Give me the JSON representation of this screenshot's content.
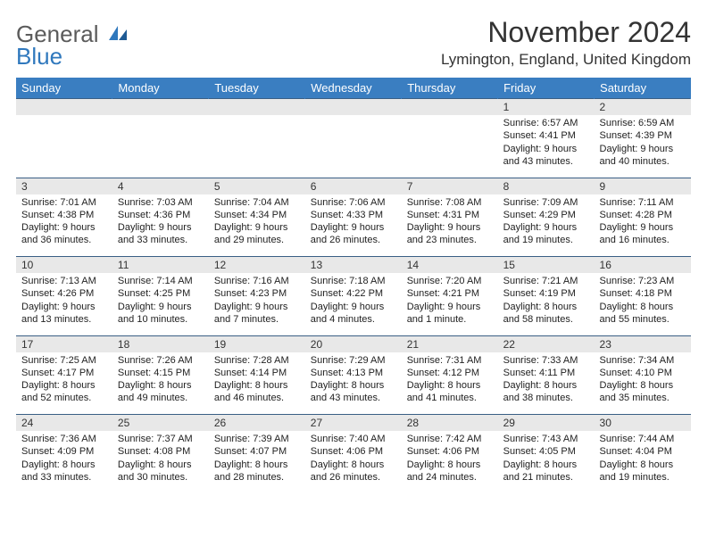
{
  "logo": {
    "text1": "General",
    "text2": "Blue"
  },
  "title": "November 2024",
  "location": "Lymington, England, United Kingdom",
  "colors": {
    "header_bg": "#3a7ec1",
    "header_text": "#ffffff",
    "daynum_bg": "#e8e8e8",
    "border": "#3a5f85",
    "logo_gray": "#5b5b5b",
    "logo_blue": "#2f78bd"
  },
  "weekday_headers": [
    "Sunday",
    "Monday",
    "Tuesday",
    "Wednesday",
    "Thursday",
    "Friday",
    "Saturday"
  ],
  "weeks": [
    {
      "nums": [
        "",
        "",
        "",
        "",
        "",
        "1",
        "2"
      ],
      "details": [
        null,
        null,
        null,
        null,
        null,
        {
          "sunrise": "Sunrise: 6:57 AM",
          "sunset": "Sunset: 4:41 PM",
          "day1": "Daylight: 9 hours",
          "day2": "and 43 minutes."
        },
        {
          "sunrise": "Sunrise: 6:59 AM",
          "sunset": "Sunset: 4:39 PM",
          "day1": "Daylight: 9 hours",
          "day2": "and 40 minutes."
        }
      ]
    },
    {
      "nums": [
        "3",
        "4",
        "5",
        "6",
        "7",
        "8",
        "9"
      ],
      "details": [
        {
          "sunrise": "Sunrise: 7:01 AM",
          "sunset": "Sunset: 4:38 PM",
          "day1": "Daylight: 9 hours",
          "day2": "and 36 minutes."
        },
        {
          "sunrise": "Sunrise: 7:03 AM",
          "sunset": "Sunset: 4:36 PM",
          "day1": "Daylight: 9 hours",
          "day2": "and 33 minutes."
        },
        {
          "sunrise": "Sunrise: 7:04 AM",
          "sunset": "Sunset: 4:34 PM",
          "day1": "Daylight: 9 hours",
          "day2": "and 29 minutes."
        },
        {
          "sunrise": "Sunrise: 7:06 AM",
          "sunset": "Sunset: 4:33 PM",
          "day1": "Daylight: 9 hours",
          "day2": "and 26 minutes."
        },
        {
          "sunrise": "Sunrise: 7:08 AM",
          "sunset": "Sunset: 4:31 PM",
          "day1": "Daylight: 9 hours",
          "day2": "and 23 minutes."
        },
        {
          "sunrise": "Sunrise: 7:09 AM",
          "sunset": "Sunset: 4:29 PM",
          "day1": "Daylight: 9 hours",
          "day2": "and 19 minutes."
        },
        {
          "sunrise": "Sunrise: 7:11 AM",
          "sunset": "Sunset: 4:28 PM",
          "day1": "Daylight: 9 hours",
          "day2": "and 16 minutes."
        }
      ]
    },
    {
      "nums": [
        "10",
        "11",
        "12",
        "13",
        "14",
        "15",
        "16"
      ],
      "details": [
        {
          "sunrise": "Sunrise: 7:13 AM",
          "sunset": "Sunset: 4:26 PM",
          "day1": "Daylight: 9 hours",
          "day2": "and 13 minutes."
        },
        {
          "sunrise": "Sunrise: 7:14 AM",
          "sunset": "Sunset: 4:25 PM",
          "day1": "Daylight: 9 hours",
          "day2": "and 10 minutes."
        },
        {
          "sunrise": "Sunrise: 7:16 AM",
          "sunset": "Sunset: 4:23 PM",
          "day1": "Daylight: 9 hours",
          "day2": "and 7 minutes."
        },
        {
          "sunrise": "Sunrise: 7:18 AM",
          "sunset": "Sunset: 4:22 PM",
          "day1": "Daylight: 9 hours",
          "day2": "and 4 minutes."
        },
        {
          "sunrise": "Sunrise: 7:20 AM",
          "sunset": "Sunset: 4:21 PM",
          "day1": "Daylight: 9 hours",
          "day2": "and 1 minute."
        },
        {
          "sunrise": "Sunrise: 7:21 AM",
          "sunset": "Sunset: 4:19 PM",
          "day1": "Daylight: 8 hours",
          "day2": "and 58 minutes."
        },
        {
          "sunrise": "Sunrise: 7:23 AM",
          "sunset": "Sunset: 4:18 PM",
          "day1": "Daylight: 8 hours",
          "day2": "and 55 minutes."
        }
      ]
    },
    {
      "nums": [
        "17",
        "18",
        "19",
        "20",
        "21",
        "22",
        "23"
      ],
      "details": [
        {
          "sunrise": "Sunrise: 7:25 AM",
          "sunset": "Sunset: 4:17 PM",
          "day1": "Daylight: 8 hours",
          "day2": "and 52 minutes."
        },
        {
          "sunrise": "Sunrise: 7:26 AM",
          "sunset": "Sunset: 4:15 PM",
          "day1": "Daylight: 8 hours",
          "day2": "and 49 minutes."
        },
        {
          "sunrise": "Sunrise: 7:28 AM",
          "sunset": "Sunset: 4:14 PM",
          "day1": "Daylight: 8 hours",
          "day2": "and 46 minutes."
        },
        {
          "sunrise": "Sunrise: 7:29 AM",
          "sunset": "Sunset: 4:13 PM",
          "day1": "Daylight: 8 hours",
          "day2": "and 43 minutes."
        },
        {
          "sunrise": "Sunrise: 7:31 AM",
          "sunset": "Sunset: 4:12 PM",
          "day1": "Daylight: 8 hours",
          "day2": "and 41 minutes."
        },
        {
          "sunrise": "Sunrise: 7:33 AM",
          "sunset": "Sunset: 4:11 PM",
          "day1": "Daylight: 8 hours",
          "day2": "and 38 minutes."
        },
        {
          "sunrise": "Sunrise: 7:34 AM",
          "sunset": "Sunset: 4:10 PM",
          "day1": "Daylight: 8 hours",
          "day2": "and 35 minutes."
        }
      ]
    },
    {
      "nums": [
        "24",
        "25",
        "26",
        "27",
        "28",
        "29",
        "30"
      ],
      "details": [
        {
          "sunrise": "Sunrise: 7:36 AM",
          "sunset": "Sunset: 4:09 PM",
          "day1": "Daylight: 8 hours",
          "day2": "and 33 minutes."
        },
        {
          "sunrise": "Sunrise: 7:37 AM",
          "sunset": "Sunset: 4:08 PM",
          "day1": "Daylight: 8 hours",
          "day2": "and 30 minutes."
        },
        {
          "sunrise": "Sunrise: 7:39 AM",
          "sunset": "Sunset: 4:07 PM",
          "day1": "Daylight: 8 hours",
          "day2": "and 28 minutes."
        },
        {
          "sunrise": "Sunrise: 7:40 AM",
          "sunset": "Sunset: 4:06 PM",
          "day1": "Daylight: 8 hours",
          "day2": "and 26 minutes."
        },
        {
          "sunrise": "Sunrise: 7:42 AM",
          "sunset": "Sunset: 4:06 PM",
          "day1": "Daylight: 8 hours",
          "day2": "and 24 minutes."
        },
        {
          "sunrise": "Sunrise: 7:43 AM",
          "sunset": "Sunset: 4:05 PM",
          "day1": "Daylight: 8 hours",
          "day2": "and 21 minutes."
        },
        {
          "sunrise": "Sunrise: 7:44 AM",
          "sunset": "Sunset: 4:04 PM",
          "day1": "Daylight: 8 hours",
          "day2": "and 19 minutes."
        }
      ]
    }
  ]
}
